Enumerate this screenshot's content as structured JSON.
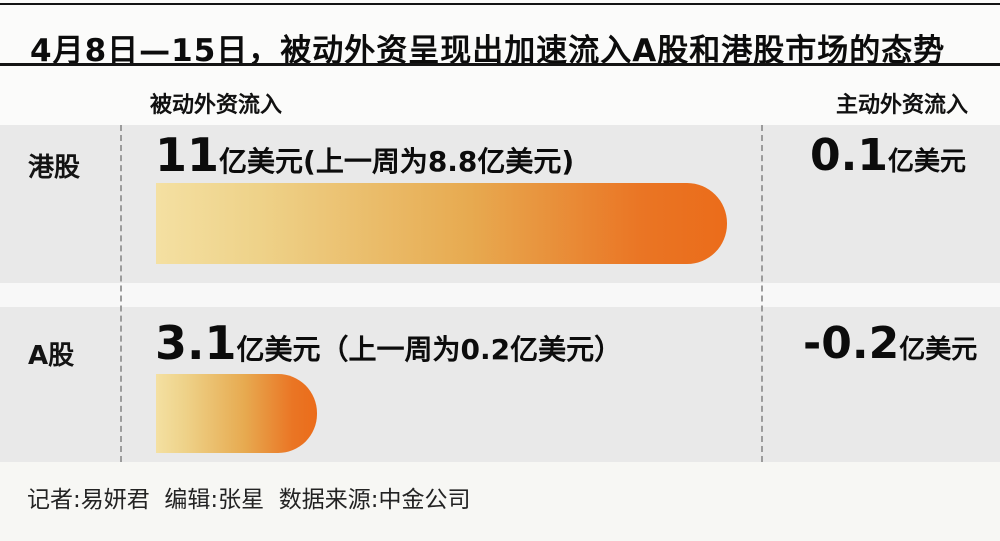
{
  "title": "4月8日—15日，被动外资呈现出加速流入A股和港股市场的态势",
  "columns": {
    "passive": "被动外资流入",
    "active": "主动外资流入"
  },
  "rows": [
    {
      "market": "港股",
      "passive_value": "11",
      "passive_suffix": "亿美元(上一周为8.8亿美元)",
      "passive_amount": 11,
      "active_value": "0.1",
      "active_suffix": "亿美元"
    },
    {
      "market": "A股",
      "passive_value": "3.1",
      "passive_suffix": "亿美元（上一周为0.2亿美元）",
      "passive_amount": 3.1,
      "active_value": "-0.2",
      "active_suffix": "亿美元"
    }
  ],
  "footer": "记者:易妍君  编辑:张星  数据来源:中金公司",
  "colors": {
    "bar_gradient_start": "#f4e0a2",
    "bar_gradient_end": "#eb6c1a",
    "row_background": "#e9e9e9",
    "rule": "#141414",
    "dashed_divider": "#9c9c9c"
  },
  "chart_data": {
    "type": "bar",
    "orientation": "horizontal",
    "title": "4月8日—15日，被动外资呈现出加速流入A股和港股市场的态势",
    "categories": [
      "港股",
      "A股"
    ],
    "series": [
      {
        "name": "被动外资流入",
        "values": [
          11,
          3.1
        ]
      },
      {
        "name": "被动外资流入(上一周)",
        "values": [
          8.8,
          0.2
        ]
      },
      {
        "name": "主动外资流入",
        "values": [
          0.1,
          -0.2
        ]
      }
    ],
    "unit": "亿美元",
    "bar_series": "被动外资流入",
    "legend_position": "none",
    "grid": false,
    "source": "中金公司"
  }
}
